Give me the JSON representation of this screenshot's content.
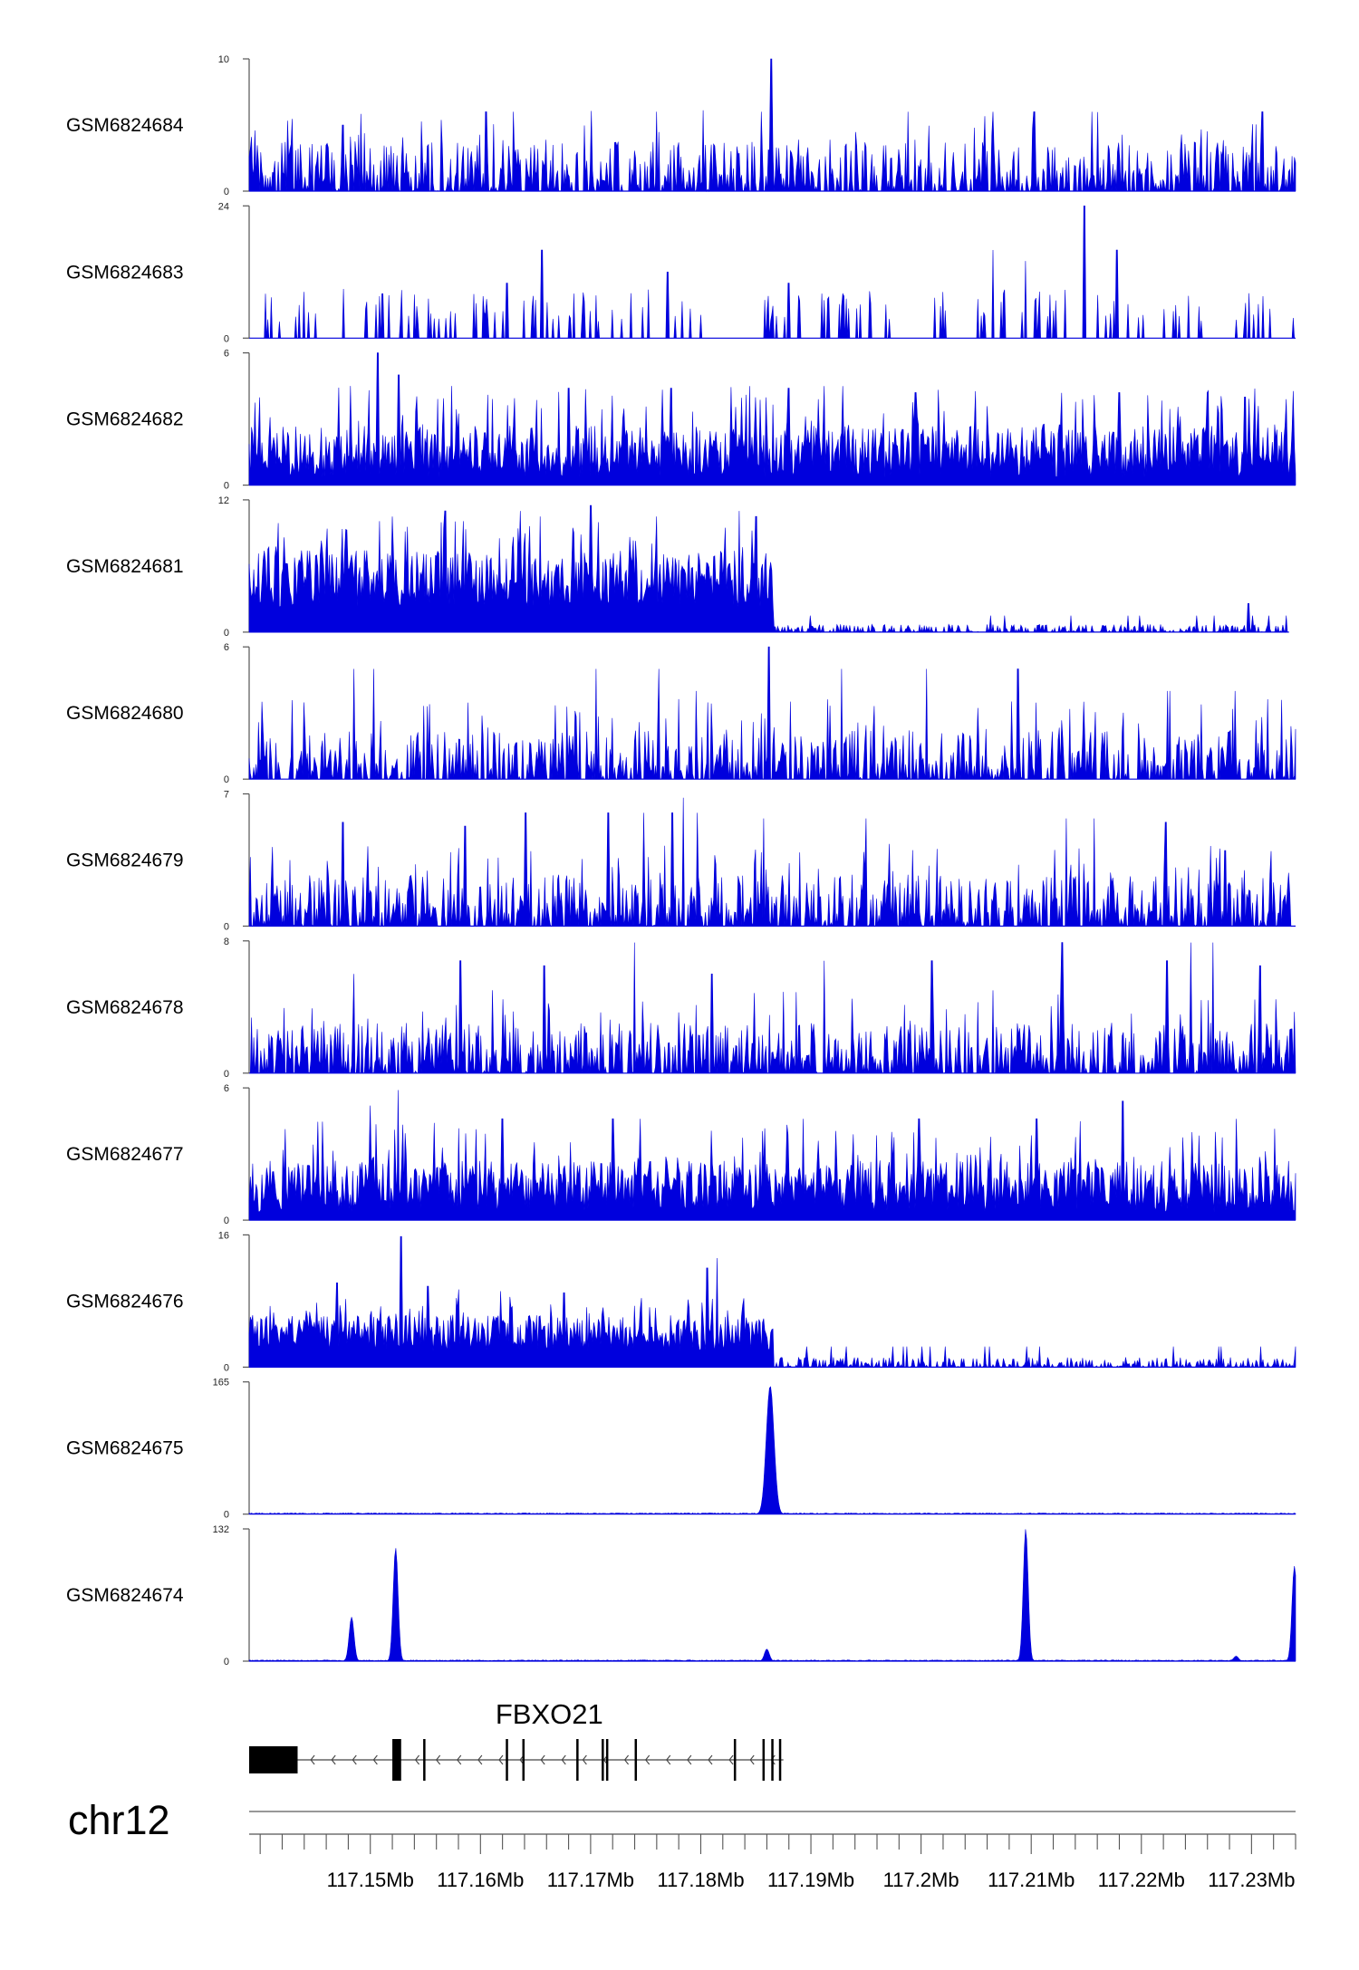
{
  "chart_data": {
    "type": "area",
    "chromosome": "chr12",
    "region_start": 117139000,
    "region_end": 117234000,
    "x_ticks": [
      117150000,
      117160000,
      117170000,
      117180000,
      117190000,
      117200000,
      117210000,
      117220000,
      117230000
    ],
    "x_tick_labels": [
      "117.15Mb",
      "117.16Mb",
      "117.17Mb",
      "117.18Mb",
      "117.19Mb",
      "117.2Mb",
      "117.21Mb",
      "117.22Mb",
      "117.23Mb"
    ],
    "fill_color": "#0000dd",
    "tracks": [
      {
        "name": "GSM6824684",
        "ymax": 10,
        "ymin": 0,
        "ymax_label": "10",
        "ymin_label": "0",
        "pattern": "sparse",
        "base": 2.2,
        "peaks": [
          [
            117186400,
            10
          ],
          [
            117176000,
            6
          ],
          [
            117185500,
            6
          ],
          [
            117198800,
            6
          ],
          [
            117206500,
            6
          ],
          [
            117210300,
            6
          ],
          [
            117215500,
            6
          ],
          [
            117147500,
            5
          ],
          [
            117160500,
            6
          ],
          [
            117163000,
            6
          ],
          [
            117231000,
            6
          ]
        ]
      },
      {
        "name": "GSM6824683",
        "ymax": 24,
        "ymin": 0,
        "ymax_label": "24",
        "ymin_label": "0",
        "pattern": "gapped",
        "base": 5,
        "data_start": 117140200,
        "gaps": [
          [
            117175300,
            117177300
          ],
          [
            117181300,
            117185400
          ],
          [
            117197200,
            117200600
          ]
        ],
        "peaks": [
          [
            117214800,
            24
          ],
          [
            117165600,
            16
          ],
          [
            117206500,
            16
          ],
          [
            117217800,
            16
          ],
          [
            117209500,
            14
          ],
          [
            117177000,
            12
          ],
          [
            117188000,
            10
          ],
          [
            117162400,
            10
          ]
        ]
      },
      {
        "name": "GSM6824682",
        "ymax": 6,
        "ymin": 0,
        "ymax_label": "6",
        "ymin_label": "0",
        "pattern": "dense",
        "base": 1.8,
        "peaks": [
          [
            117150700,
            6
          ],
          [
            117152600,
            5
          ],
          [
            117148200,
            4.5
          ],
          [
            117157400,
            4.5
          ],
          [
            117168000,
            4.4
          ],
          [
            117177300,
            4.4
          ],
          [
            117188000,
            4.4
          ],
          [
            117199500,
            4.2
          ],
          [
            117218000,
            4.2
          ],
          [
            117226000,
            4.2
          ],
          [
            117229400,
            4.0
          ]
        ]
      },
      {
        "name": "GSM6824681",
        "ymax": 12,
        "ymin": 0,
        "ymax_label": "12",
        "ymin_label": "0",
        "pattern": "enriched",
        "base": 0.6,
        "data_end": 117233400,
        "enriched_start": 117139000,
        "enriched_end": 117186600,
        "enriched_level": 6.5,
        "peaks": [
          [
            117156800,
            11
          ],
          [
            117163600,
            11
          ],
          [
            117170000,
            11.5
          ],
          [
            117183500,
            11
          ],
          [
            117165400,
            10.5
          ],
          [
            117185000,
            10.5
          ],
          [
            117152000,
            10.5
          ],
          [
            117176000,
            10.5
          ],
          [
            117229700,
            2.6
          ]
        ]
      },
      {
        "name": "GSM6824680",
        "ymax": 6,
        "ymin": 0,
        "ymax_label": "6",
        "ymin_label": "0",
        "pattern": "sparse",
        "base": 1.3,
        "peaks": [
          [
            117186200,
            6
          ],
          [
            117148500,
            5
          ],
          [
            117150300,
            5
          ],
          [
            117170500,
            5
          ],
          [
            117176200,
            5
          ],
          [
            117179600,
            4
          ],
          [
            117192800,
            5
          ],
          [
            117200500,
            5
          ],
          [
            117208800,
            5
          ],
          [
            117222400,
            4
          ],
          [
            117222600,
            4
          ],
          [
            117228500,
            4
          ],
          [
            117233600,
            2.4
          ]
        ]
      },
      {
        "name": "GSM6824679",
        "ymax": 7,
        "ymin": 0,
        "ymax_label": "7",
        "ymin_label": "0",
        "pattern": "sparse",
        "base": 1.6,
        "peaks": [
          [
            117178400,
            6.8
          ],
          [
            117177400,
            6
          ],
          [
            117171600,
            6
          ],
          [
            117174800,
            6
          ],
          [
            117164100,
            6
          ],
          [
            117179700,
            6
          ],
          [
            117185700,
            5.7
          ],
          [
            117195000,
            5.7
          ],
          [
            117213200,
            5.7
          ],
          [
            117215700,
            5.7
          ],
          [
            117222200,
            5.5
          ],
          [
            117147500,
            5.5
          ],
          [
            117158600,
            5.3
          ],
          [
            117227600,
            4.0
          ]
        ]
      },
      {
        "name": "GSM6824678",
        "ymax": 8,
        "ymin": 0,
        "ymax_label": "8",
        "ymin_label": "0",
        "pattern": "sparse",
        "base": 1.8,
        "peaks": [
          [
            117174000,
            7.9
          ],
          [
            117212800,
            7.9
          ],
          [
            117224500,
            7.9
          ],
          [
            117226500,
            7.9
          ],
          [
            117158200,
            6.8
          ],
          [
            117191200,
            6.8
          ],
          [
            117201000,
            6.8
          ],
          [
            117222300,
            6.8
          ],
          [
            117165800,
            6.5
          ],
          [
            117181000,
            6.0
          ],
          [
            117148500,
            6.0
          ],
          [
            117230800,
            6.5
          ]
        ]
      },
      {
        "name": "GSM6824677",
        "ymax": 6,
        "ymin": 0,
        "ymax_label": "6",
        "ymin_label": "0",
        "pattern": "dense",
        "base": 1.8,
        "peaks": [
          [
            117152500,
            5.9
          ],
          [
            117218300,
            5.4
          ],
          [
            117150000,
            5.2
          ],
          [
            117162000,
            4.6
          ],
          [
            117174500,
            4.6
          ],
          [
            117172000,
            4.6
          ],
          [
            117189300,
            4.6
          ],
          [
            117199800,
            4.6
          ],
          [
            117210500,
            4.6
          ],
          [
            117228600,
            4.6
          ],
          [
            117226700,
            4.0
          ]
        ]
      },
      {
        "name": "GSM6824676",
        "ymax": 16,
        "ymin": 0,
        "ymax_label": "16",
        "ymin_label": "0",
        "pattern": "enriched",
        "base": 1.0,
        "data_end": 117234000,
        "enriched_start": 117139000,
        "enriched_end": 117186600,
        "enriched_level": 5.5,
        "peaks": [
          [
            117152800,
            15.8
          ],
          [
            117155200,
            9.8
          ],
          [
            117158000,
            9.4
          ],
          [
            117167600,
            9.0
          ],
          [
            117181500,
            13.2
          ],
          [
            117180600,
            12.0
          ],
          [
            117161800,
            9.2
          ],
          [
            117147000,
            10.2
          ]
        ]
      },
      {
        "name": "GSM6824675",
        "ymax": 165,
        "ymin": 0,
        "ymax_label": "165",
        "ymin_label": "0",
        "pattern": "flat",
        "base": 1.2,
        "data_end": 117234000,
        "peaks": [
          [
            117186300,
            160
          ]
        ],
        "peak_width": 350
      },
      {
        "name": "GSM6824674",
        "ymax": 132,
        "ymin": 0,
        "ymax_label": "132",
        "ymin_label": "0",
        "pattern": "flat",
        "base": 1.0,
        "data_end": 117234000,
        "peaks": [
          [
            117148300,
            44
          ],
          [
            117152300,
            113
          ],
          [
            117186000,
            12
          ],
          [
            117209500,
            132
          ],
          [
            117233900,
            95
          ],
          [
            117228600,
            5
          ]
        ],
        "peak_width": 220
      }
    ],
    "gene": {
      "name": "FBXO21",
      "strand": "-",
      "start": 117139000,
      "end": 117187500,
      "exons": [
        [
          117139000,
          117143400
        ],
        [
          117152000,
          117152800
        ],
        [
          117154800,
          117155000
        ],
        [
          117162300,
          117162500
        ],
        [
          117163800,
          117164000
        ],
        [
          117168700,
          117168900
        ],
        [
          117171000,
          117171200
        ],
        [
          117171400,
          117171600
        ],
        [
          117174000,
          117174200
        ],
        [
          117183000,
          117183200
        ],
        [
          117185600,
          117185800
        ],
        [
          117186400,
          117186600
        ],
        [
          117187100,
          117187300
        ]
      ]
    }
  }
}
